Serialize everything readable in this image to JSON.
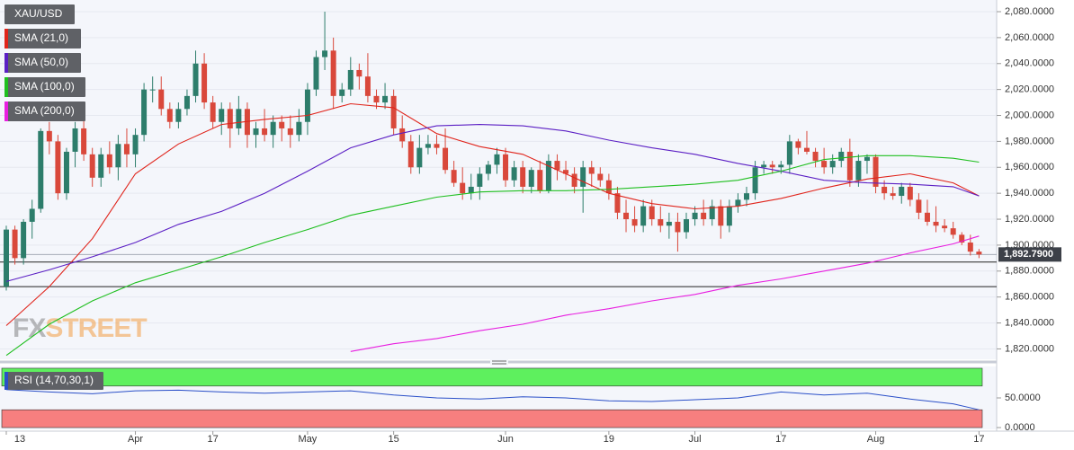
{
  "chart_data": [
    {
      "type": "candlestick",
      "symbol": "XAU/USD",
      "open": [
        1868,
        1912,
        1890,
        1918,
        1928,
        1988,
        1980,
        1940,
        1972,
        1990,
        1970,
        1952,
        1970,
        1960,
        1978,
        1970,
        1985,
        2020,
        2020,
        2005,
        1995,
        2005,
        2015,
        2040,
        2010,
        1995,
        2005,
        1990,
        2005,
        1985,
        1990,
        1985,
        1995,
        1990,
        1985,
        1995,
        2020,
        2045,
        2050,
        2015,
        2020,
        2035,
        2030,
        2015,
        2010,
        2015,
        1990,
        1980,
        1960,
        1975,
        1978,
        1975,
        1958,
        1948,
        1940,
        1945,
        1955,
        1962,
        1970,
        1950,
        1960,
        1945,
        1958,
        1942,
        1965,
        1958,
        1955,
        1945,
        1960,
        1955,
        1950,
        1940,
        1925,
        1920,
        1915,
        1930,
        1920,
        1915,
        1918,
        1910,
        1920,
        1925,
        1920,
        1930,
        1915,
        1930,
        1935,
        1940,
        1960,
        1962,
        1960,
        1962,
        1980,
        1975,
        1972,
        1965,
        1960,
        1965,
        1972,
        1950,
        1965,
        1968,
        1945,
        1940,
        1938,
        1945,
        1935,
        1925,
        1918,
        1915,
        1913,
        1908,
        1902,
        1895
      ],
      "high": [
        1915,
        1915,
        1920,
        1935,
        1990,
        1995,
        1985,
        1975,
        1995,
        2003,
        1975,
        1975,
        1980,
        1985,
        1990,
        1990,
        2025,
        2030,
        2030,
        2010,
        2010,
        2020,
        2050,
        2048,
        2015,
        2010,
        2010,
        2015,
        2010,
        1995,
        2005,
        2000,
        2000,
        2000,
        2005,
        2025,
        2050,
        2080,
        2060,
        2025,
        2045,
        2040,
        2048,
        2020,
        2025,
        2020,
        2000,
        1985,
        1985,
        1985,
        1985,
        1990,
        1965,
        1960,
        1955,
        1960,
        1965,
        1975,
        1975,
        1965,
        1965,
        1960,
        1965,
        1970,
        1970,
        1965,
        1960,
        1965,
        1965,
        1960,
        1955,
        1945,
        1935,
        1930,
        1935,
        1935,
        1930,
        1925,
        1925,
        1925,
        1930,
        1935,
        1935,
        1935,
        1935,
        1940,
        1945,
        1965,
        1965,
        1965,
        1965,
        1985,
        1982,
        1988,
        1975,
        1975,
        1970,
        1975,
        1982,
        1970,
        1970,
        1970,
        1950,
        1945,
        1948,
        1948,
        1940,
        1935,
        1930,
        1920,
        1918,
        1910,
        1908,
        1897
      ],
      "low": [
        1865,
        1885,
        1885,
        1905,
        1925,
        1970,
        1935,
        1935,
        1960,
        1965,
        1945,
        1945,
        1955,
        1950,
        1960,
        1960,
        1980,
        2010,
        2000,
        1990,
        1990,
        2000,
        2010,
        2005,
        1990,
        1985,
        1975,
        1985,
        1975,
        1975,
        1980,
        1975,
        1980,
        1975,
        1980,
        1985,
        2015,
        2035,
        2005,
        2010,
        2015,
        2020,
        2010,
        2005,
        2005,
        1985,
        1975,
        1955,
        1955,
        1970,
        1970,
        1955,
        1945,
        1935,
        1935,
        1935,
        1950,
        1955,
        1945,
        1945,
        1940,
        1940,
        1940,
        1940,
        1950,
        1950,
        1940,
        1925,
        1945,
        1945,
        1935,
        1920,
        1910,
        1910,
        1910,
        1915,
        1910,
        1905,
        1895,
        1905,
        1915,
        1915,
        1915,
        1905,
        1910,
        1925,
        1930,
        1935,
        1955,
        1955,
        1955,
        1955,
        1970,
        1970,
        1960,
        1955,
        1955,
        1960,
        1945,
        1945,
        1955,
        1940,
        1935,
        1935,
        1932,
        1930,
        1920,
        1915,
        1910,
        1910,
        1905,
        1900,
        1892,
        1890
      ],
      "close": [
        1912,
        1890,
        1918,
        1928,
        1988,
        1980,
        1940,
        1972,
        1990,
        1970,
        1952,
        1970,
        1960,
        1978,
        1970,
        1985,
        2020,
        2020,
        2005,
        1995,
        2005,
        2015,
        2040,
        2010,
        1995,
        2005,
        1990,
        2005,
        1985,
        1990,
        1985,
        1995,
        1990,
        1985,
        1995,
        2020,
        2045,
        2050,
        2015,
        2020,
        2035,
        2030,
        2015,
        2010,
        2015,
        1990,
        1980,
        1960,
        1975,
        1978,
        1975,
        1958,
        1948,
        1940,
        1945,
        1955,
        1962,
        1970,
        1950,
        1960,
        1945,
        1958,
        1942,
        1965,
        1958,
        1955,
        1945,
        1960,
        1955,
        1950,
        1940,
        1925,
        1920,
        1915,
        1930,
        1920,
        1915,
        1918,
        1910,
        1920,
        1925,
        1920,
        1930,
        1915,
        1930,
        1935,
        1940,
        1960,
        1962,
        1960,
        1962,
        1980,
        1975,
        1972,
        1965,
        1960,
        1965,
        1972,
        1950,
        1965,
        1968,
        1945,
        1940,
        1938,
        1945,
        1935,
        1925,
        1918,
        1915,
        1913,
        1908,
        1902,
        1895,
        1892.79
      ],
      "up_color": "#2d7d6b",
      "down_color": "#d9483b",
      "xlim": [
        -0.73,
        115.05
      ],
      "xticks": [
        {
          "value": 0,
          "label": "13"
        },
        {
          "value": 15,
          "label": "Apr"
        },
        {
          "value": 24,
          "label": "17"
        },
        {
          "value": 35,
          "label": "May"
        },
        {
          "value": 45,
          "label": "15"
        },
        {
          "value": 58,
          "label": "Jun"
        },
        {
          "value": 70,
          "label": "19"
        },
        {
          "value": 80,
          "label": "Jul"
        },
        {
          "value": 90,
          "label": "17"
        },
        {
          "value": 101,
          "label": "Aug"
        },
        {
          "value": 113,
          "label": "17"
        }
      ],
      "ylim": [
        1812,
        2089
      ],
      "yticks": [
        {
          "value": 1820,
          "label": "1,820.0000"
        },
        {
          "value": 1840,
          "label": "1,840.0000"
        },
        {
          "value": 1860,
          "label": "1,860.0000"
        },
        {
          "value": 1880,
          "label": "1,880.0000"
        },
        {
          "value": 1900,
          "label": "1,900.0000"
        },
        {
          "value": 1920,
          "label": "1,920.0000"
        },
        {
          "value": 1940,
          "label": "1,940.0000"
        },
        {
          "value": 1960,
          "label": "1,960.0000"
        },
        {
          "value": 1980,
          "label": "1,980.0000"
        },
        {
          "value": 2000,
          "label": "2,000.0000"
        },
        {
          "value": 2020,
          "label": "2,020.0000"
        },
        {
          "value": 2040,
          "label": "2,040.0000"
        },
        {
          "value": 2060,
          "label": "2,060.0000"
        },
        {
          "value": 2080,
          "label": "2,080.0000"
        }
      ],
      "last_price": 1892.79,
      "last_price_label": "1,892.7900",
      "levels": [
        1887,
        1868
      ],
      "watermark": [
        "FX",
        "STREET"
      ],
      "indicators": [
        {
          "name": "SMA (21,0)",
          "color": "#e0241b",
          "x": [
            0,
            5,
            10,
            15,
            20,
            25,
            30,
            35,
            40,
            45,
            50,
            55,
            60,
            65,
            70,
            75,
            80,
            85,
            90,
            95,
            100,
            105,
            110,
            113
          ],
          "values": [
            1838,
            1868,
            1905,
            1955,
            1978,
            1993,
            1997,
            2000,
            2009,
            2006,
            1986,
            1976,
            1970,
            1955,
            1940,
            1932,
            1928,
            1930,
            1936,
            1944,
            1951,
            1955,
            1948,
            1938
          ]
        },
        {
          "name": "SMA (50,0)",
          "color": "#5b1fc4",
          "x": [
            0,
            5,
            10,
            15,
            20,
            25,
            30,
            35,
            40,
            45,
            50,
            55,
            60,
            65,
            70,
            75,
            80,
            85,
            90,
            95,
            100,
            105,
            110,
            113
          ],
          "values": [
            1872,
            1881,
            1891,
            1902,
            1916,
            1926,
            1940,
            1957,
            1975,
            1985,
            1992,
            1993,
            1992,
            1988,
            1981,
            1975,
            1970,
            1963,
            1957,
            1950,
            1948,
            1947,
            1945,
            1938
          ]
        },
        {
          "name": "SMA (100,0)",
          "color": "#1fbf1f",
          "x": [
            0,
            5,
            10,
            15,
            20,
            25,
            30,
            35,
            40,
            45,
            50,
            55,
            60,
            65,
            70,
            75,
            80,
            85,
            90,
            95,
            100,
            105,
            110,
            113
          ],
          "values": [
            1815,
            1839,
            1857,
            1871,
            1881,
            1891,
            1902,
            1912,
            1923,
            1930,
            1937,
            1941,
            1942,
            1942,
            1943,
            1945,
            1947,
            1950,
            1957,
            1966,
            1969,
            1969,
            1967,
            1964
          ]
        },
        {
          "name": "SMA (200,0)",
          "color": "#e81ee0",
          "x": [
            0,
            5,
            10,
            15,
            20,
            25,
            30,
            35,
            40,
            45,
            50,
            55,
            60,
            65,
            70,
            75,
            80,
            85,
            90,
            95,
            100,
            105,
            110,
            113
          ],
          "values": [
            null,
            null,
            null,
            null,
            null,
            null,
            null,
            null,
            1818,
            1824,
            1828,
            1834,
            1839,
            1846,
            1851,
            1857,
            1862,
            1869,
            1874,
            1880,
            1886,
            1894,
            1901,
            1907
          ]
        }
      ]
    },
    {
      "type": "line",
      "title": "RSI (14,70,30,1)",
      "color": "#2a4fc8",
      "x": [
        0,
        5,
        10,
        15,
        20,
        25,
        30,
        35,
        40,
        45,
        50,
        55,
        60,
        65,
        70,
        75,
        80,
        85,
        90,
        95,
        100,
        105,
        110,
        113
      ],
      "values": [
        64,
        60,
        57,
        62,
        63,
        60,
        58,
        60,
        62,
        55,
        50,
        48,
        52,
        50,
        45,
        44,
        47,
        50,
        60,
        55,
        58,
        48,
        40,
        30
      ],
      "ylim": [
        -3,
        103
      ],
      "yticks": [
        {
          "value": 0,
          "label": "0.0000"
        },
        {
          "value": 50,
          "label": "50.0000"
        }
      ],
      "overbought": 70,
      "oversold": 30,
      "overbought_color": "#5ef05e",
      "oversold_color": "#f77f7f"
    }
  ]
}
